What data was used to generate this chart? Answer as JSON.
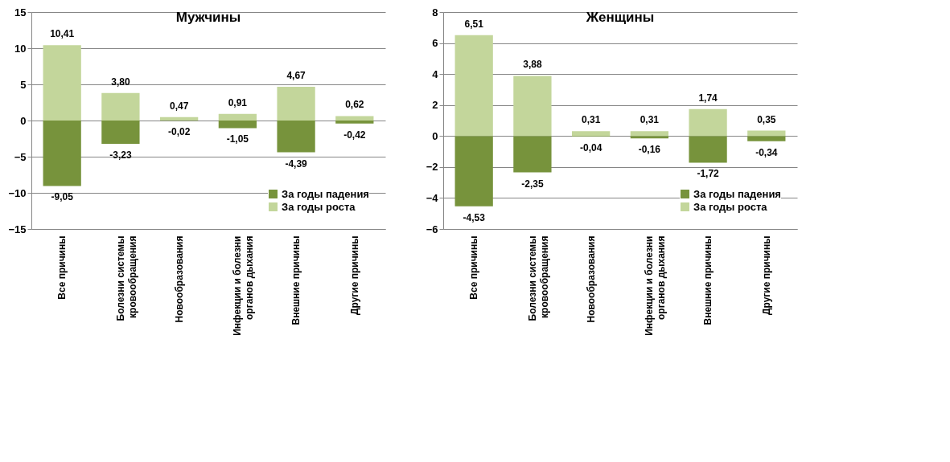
{
  "chart_data": [
    {
      "type": "bar",
      "title": "Мужчины",
      "stacked": true,
      "grid": "y",
      "legend": "bottom right",
      "categories": [
        "Все причины",
        "Болезни системы кровообращения",
        "Новообразования",
        "Инфекции и болезни органов дыхания",
        "Внешние причины",
        "Другие причины"
      ],
      "ylim": [
        -15,
        15
      ],
      "yticks": [
        -15,
        -10,
        -5,
        0,
        5,
        10,
        15
      ],
      "series": [
        {
          "name": "За годы падения",
          "color": "#77933c",
          "values": [
            -9.05,
            -3.23,
            -0.02,
            -1.05,
            -4.39,
            -0.42
          ],
          "value_labels": [
            "-9,05",
            "-3,23",
            "-0,02",
            "-1,05",
            "-4,39",
            "-0,42"
          ]
        },
        {
          "name": "За годы роста",
          "color": "#c3d69b",
          "values": [
            10.41,
            3.8,
            0.47,
            0.91,
            4.67,
            0.62
          ],
          "value_labels": [
            "10,41",
            "3,80",
            "0,47",
            "0,91",
            "4,67",
            "0,62"
          ]
        }
      ]
    },
    {
      "type": "bar",
      "title": "Женщины",
      "stacked": true,
      "grid": "y",
      "legend": "bottom right",
      "categories": [
        "Все причины",
        "Болезни системы кровообращения",
        "Новообразования",
        "Инфекции и болезни органов дыхания",
        "Внешние причины",
        "Другие причины"
      ],
      "ylim": [
        -6,
        8
      ],
      "yticks": [
        -6,
        -4,
        -2,
        0,
        2,
        4,
        6,
        8
      ],
      "series": [
        {
          "name": "За годы падения",
          "color": "#77933c",
          "values": [
            -4.53,
            -2.35,
            -0.04,
            -0.16,
            -1.72,
            -0.34
          ],
          "value_labels": [
            "-4,53",
            "-2,35",
            "-0,04",
            "-0,16",
            "-1,72",
            "-0,34"
          ]
        },
        {
          "name": "За годы роста",
          "color": "#c3d69b",
          "values": [
            6.51,
            3.88,
            0.31,
            0.31,
            1.74,
            0.35
          ],
          "value_labels": [
            "6,51",
            "3,88",
            "0,31",
            "0,31",
            "1,74",
            "0,35"
          ]
        }
      ]
    }
  ]
}
